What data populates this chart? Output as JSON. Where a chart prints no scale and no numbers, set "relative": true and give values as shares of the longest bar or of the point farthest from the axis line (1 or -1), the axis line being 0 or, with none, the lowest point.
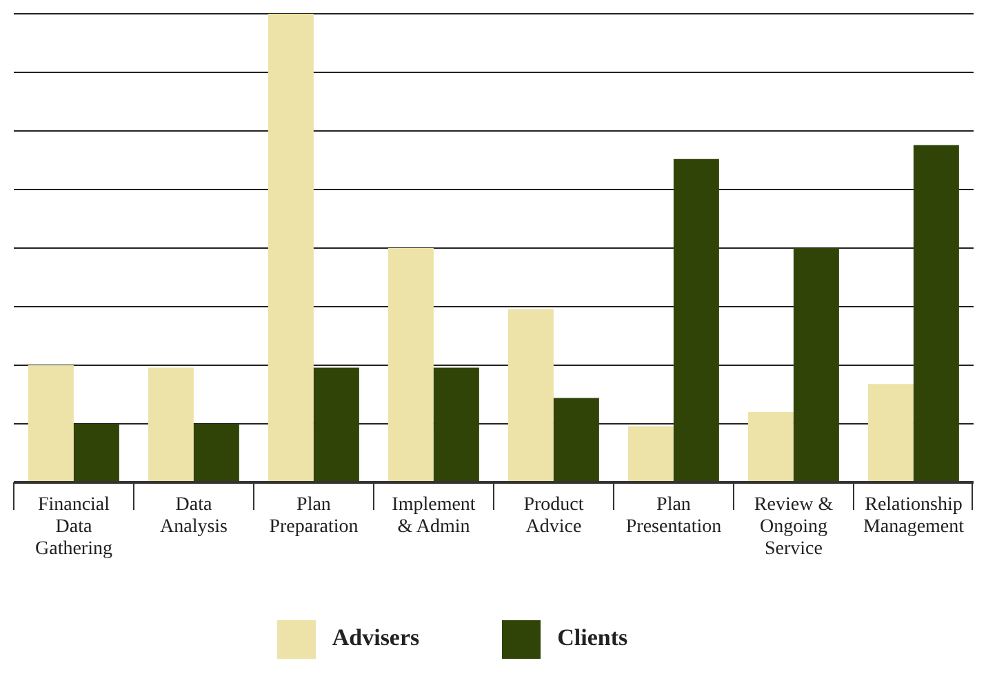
{
  "chart_data": {
    "type": "bar",
    "relative": true,
    "grid": "y",
    "legend": "bottom",
    "categories": [
      "Financial Data Gathering",
      "Data Analysis",
      "Plan Preparation",
      "Implement & Admin",
      "Product Advice",
      "Plan Presentation",
      "Review & Ongoing Service",
      "Relationship Management"
    ],
    "series": [
      {
        "name": "Advisers",
        "color": "#ede3a8",
        "values": [
          0.25,
          0.245,
          1,
          0.5,
          0.37,
          0.12,
          0.15,
          0.21
        ]
      },
      {
        "name": "Clients",
        "color": "#304408",
        "values": [
          0.125,
          0.125,
          0.245,
          0.245,
          0.18,
          0.69,
          0.5,
          0.72
        ]
      }
    ]
  }
}
